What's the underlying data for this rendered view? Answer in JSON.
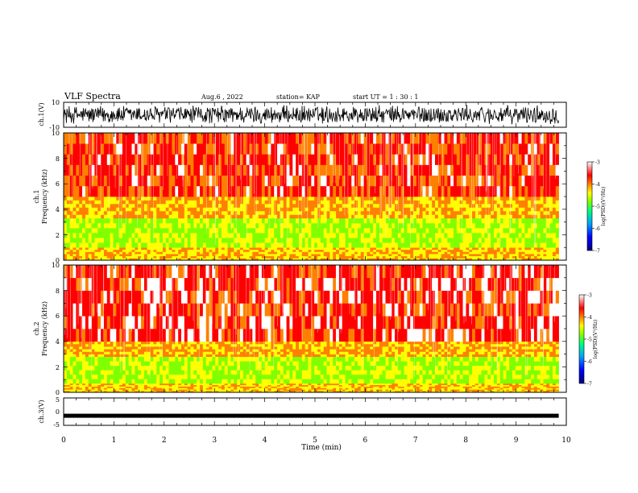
{
  "header": {
    "title": "VLF Spectra",
    "date": "Aug.6  , 2022",
    "station": "station= KAP",
    "start": "start  UT  =   1 : 30 : 1"
  },
  "chart_data": [
    {
      "type": "line",
      "panel": "ch1-waveform",
      "ylabel": "ch.1(V)",
      "ylim": [
        -10,
        10
      ],
      "yticks": [
        "10",
        "-10"
      ],
      "xlim": [
        0,
        10
      ],
      "description_values": {
        "approx_min": -8,
        "approx_max": 8
      }
    },
    {
      "type": "heatmap",
      "panel": "ch1-spectrogram",
      "ylabel": "ch.1\nFrequency (kHz)",
      "ylabel_line1": "ch.1",
      "ylabel_line2": "Frequency (kHz)",
      "ylim": [
        0,
        10
      ],
      "yticks": [
        "0",
        "2",
        "4",
        "6",
        "8",
        "10"
      ],
      "xlim": [
        0,
        9.85
      ],
      "colorbar": {
        "label": "log(PSD)(V²/Hz)",
        "ticks": [
          "-3",
          "-4",
          "-5",
          "-6",
          "-7"
        ]
      },
      "bands": [
        {
          "from_khz": 0.0,
          "to_khz": 1.0,
          "level": -4.3
        },
        {
          "from_khz": 1.0,
          "to_khz": 3.3,
          "level": -4.8
        },
        {
          "from_khz": 3.3,
          "to_khz": 5.0,
          "level": -4.2
        },
        {
          "from_khz": 5.0,
          "to_khz": 10.0,
          "level": -3.6
        }
      ]
    },
    {
      "type": "heatmap",
      "panel": "ch2-spectrogram",
      "ylabel_line1": "ch.2",
      "ylabel_line2": "Frequency (kHz)",
      "ylim": [
        0,
        10
      ],
      "yticks": [
        "0",
        "2",
        "4",
        "6",
        "8",
        "10"
      ],
      "xlim": [
        0,
        9.85
      ],
      "colorbar": {
        "label": "log(PSD)(V²/Hz)",
        "ticks": [
          "-3",
          "-4",
          "-5",
          "-6",
          "-7"
        ]
      },
      "bands": [
        {
          "from_khz": 0.0,
          "to_khz": 0.7,
          "level": -4.3
        },
        {
          "from_khz": 0.7,
          "to_khz": 2.8,
          "level": -4.8
        },
        {
          "from_khz": 2.8,
          "to_khz": 4.0,
          "level": -4.2
        },
        {
          "from_khz": 4.0,
          "to_khz": 10.0,
          "level": -3.5
        }
      ]
    },
    {
      "type": "line",
      "panel": "ch3-waveform",
      "ylabel": "ch.3(V)",
      "ylim": [
        -5,
        5
      ],
      "yticks": [
        "5",
        "0",
        "-5"
      ],
      "xlim": [
        0,
        10
      ],
      "xlabel": "Time  (min)",
      "xticks": [
        "0",
        "1",
        "2",
        "3",
        "4",
        "5",
        "6",
        "7",
        "8",
        "9",
        "10"
      ],
      "description_values": {
        "approx_level": -1.5
      }
    }
  ],
  "colors": {
    "colormap": [
      "#000080",
      "#0000ff",
      "#00a0ff",
      "#00ff80",
      "#80ff00",
      "#ffff00",
      "#ff8000",
      "#ff0000",
      "#ffffff"
    ]
  }
}
